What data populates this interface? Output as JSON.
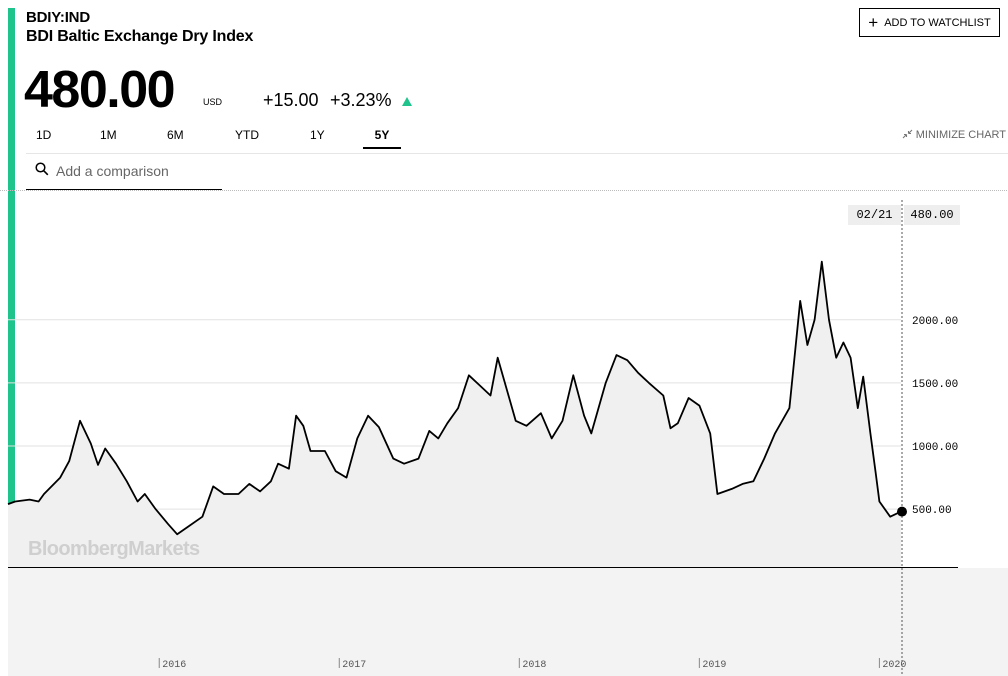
{
  "header": {
    "ticker": "BDIY:IND",
    "name": "BDI Baltic Exchange Dry Index",
    "price": "480.00",
    "currency": "USD",
    "change": "+15.00",
    "change_pct": "+3.23%",
    "change_direction": "up-arrow-icon",
    "accent_color": "#1fc38c"
  },
  "actions": {
    "watchlist_label": "ADD TO WATCHLIST",
    "minimize_label": "MINIMIZE CHART"
  },
  "tabs": [
    {
      "label": "1D"
    },
    {
      "label": "1M"
    },
    {
      "label": "6M"
    },
    {
      "label": "YTD"
    },
    {
      "label": "1Y"
    },
    {
      "label": "5Y",
      "active": true
    }
  ],
  "search": {
    "placeholder": "Add a comparison"
  },
  "watermark": "BloombergMarkets",
  "tooltip": {
    "date": "02/21",
    "value": "480.00"
  },
  "chart_data": {
    "type": "area",
    "title": "",
    "xlabel": "",
    "ylabel": "",
    "y_ticks": [
      "2000.00",
      "1500.00",
      "1000.00",
      "500.00"
    ],
    "x_ticks": [
      "2016",
      "2017",
      "2018",
      "2019",
      "2020"
    ],
    "grid": true,
    "series": [
      {
        "values": [
          [
            2015.16,
            540
          ],
          [
            2015.2,
            560
          ],
          [
            2015.28,
            575
          ],
          [
            2015.33,
            560
          ],
          [
            2015.36,
            620
          ],
          [
            2015.45,
            750
          ],
          [
            2015.5,
            880
          ],
          [
            2015.56,
            1200
          ],
          [
            2015.62,
            1020
          ],
          [
            2015.66,
            850
          ],
          [
            2015.7,
            980
          ],
          [
            2015.76,
            860
          ],
          [
            2015.82,
            720
          ],
          [
            2015.88,
            560
          ],
          [
            2015.92,
            620
          ],
          [
            2015.98,
            500
          ],
          [
            2016.05,
            380
          ],
          [
            2016.1,
            300
          ],
          [
            2016.16,
            360
          ],
          [
            2016.24,
            440
          ],
          [
            2016.3,
            680
          ],
          [
            2016.36,
            620
          ],
          [
            2016.44,
            620
          ],
          [
            2016.5,
            700
          ],
          [
            2016.56,
            640
          ],
          [
            2016.62,
            720
          ],
          [
            2016.66,
            860
          ],
          [
            2016.72,
            820
          ],
          [
            2016.76,
            1240
          ],
          [
            2016.8,
            1160
          ],
          [
            2016.84,
            960
          ],
          [
            2016.92,
            960
          ],
          [
            2016.98,
            800
          ],
          [
            2017.04,
            750
          ],
          [
            2017.1,
            1060
          ],
          [
            2017.16,
            1240
          ],
          [
            2017.22,
            1150
          ],
          [
            2017.3,
            900
          ],
          [
            2017.36,
            860
          ],
          [
            2017.44,
            900
          ],
          [
            2017.5,
            1120
          ],
          [
            2017.55,
            1060
          ],
          [
            2017.6,
            1180
          ],
          [
            2017.66,
            1300
          ],
          [
            2017.72,
            1560
          ],
          [
            2017.78,
            1480
          ],
          [
            2017.84,
            1400
          ],
          [
            2017.88,
            1700
          ],
          [
            2017.94,
            1400
          ],
          [
            2017.98,
            1200
          ],
          [
            2018.04,
            1160
          ],
          [
            2018.12,
            1260
          ],
          [
            2018.18,
            1060
          ],
          [
            2018.24,
            1200
          ],
          [
            2018.3,
            1560
          ],
          [
            2018.36,
            1240
          ],
          [
            2018.4,
            1100
          ],
          [
            2018.44,
            1300
          ],
          [
            2018.48,
            1500
          ],
          [
            2018.54,
            1720
          ],
          [
            2018.6,
            1680
          ],
          [
            2018.66,
            1580
          ],
          [
            2018.72,
            1500
          ],
          [
            2018.8,
            1400
          ],
          [
            2018.84,
            1140
          ],
          [
            2018.88,
            1180
          ],
          [
            2018.94,
            1380
          ],
          [
            2019.0,
            1320
          ],
          [
            2019.06,
            1100
          ],
          [
            2019.1,
            620
          ],
          [
            2019.18,
            660
          ],
          [
            2019.24,
            700
          ],
          [
            2019.3,
            720
          ],
          [
            2019.36,
            900
          ],
          [
            2019.42,
            1100
          ],
          [
            2019.5,
            1300
          ],
          [
            2019.56,
            2150
          ],
          [
            2019.6,
            1800
          ],
          [
            2019.64,
            2000
          ],
          [
            2019.68,
            2460
          ],
          [
            2019.72,
            2000
          ],
          [
            2019.76,
            1700
          ],
          [
            2019.8,
            1820
          ],
          [
            2019.84,
            1700
          ],
          [
            2019.88,
            1300
          ],
          [
            2019.91,
            1550
          ],
          [
            2019.95,
            1100
          ],
          [
            2019.98,
            780
          ],
          [
            2020.0,
            560
          ],
          [
            2020.06,
            440
          ],
          [
            2020.12,
            480
          ]
        ]
      }
    ]
  }
}
